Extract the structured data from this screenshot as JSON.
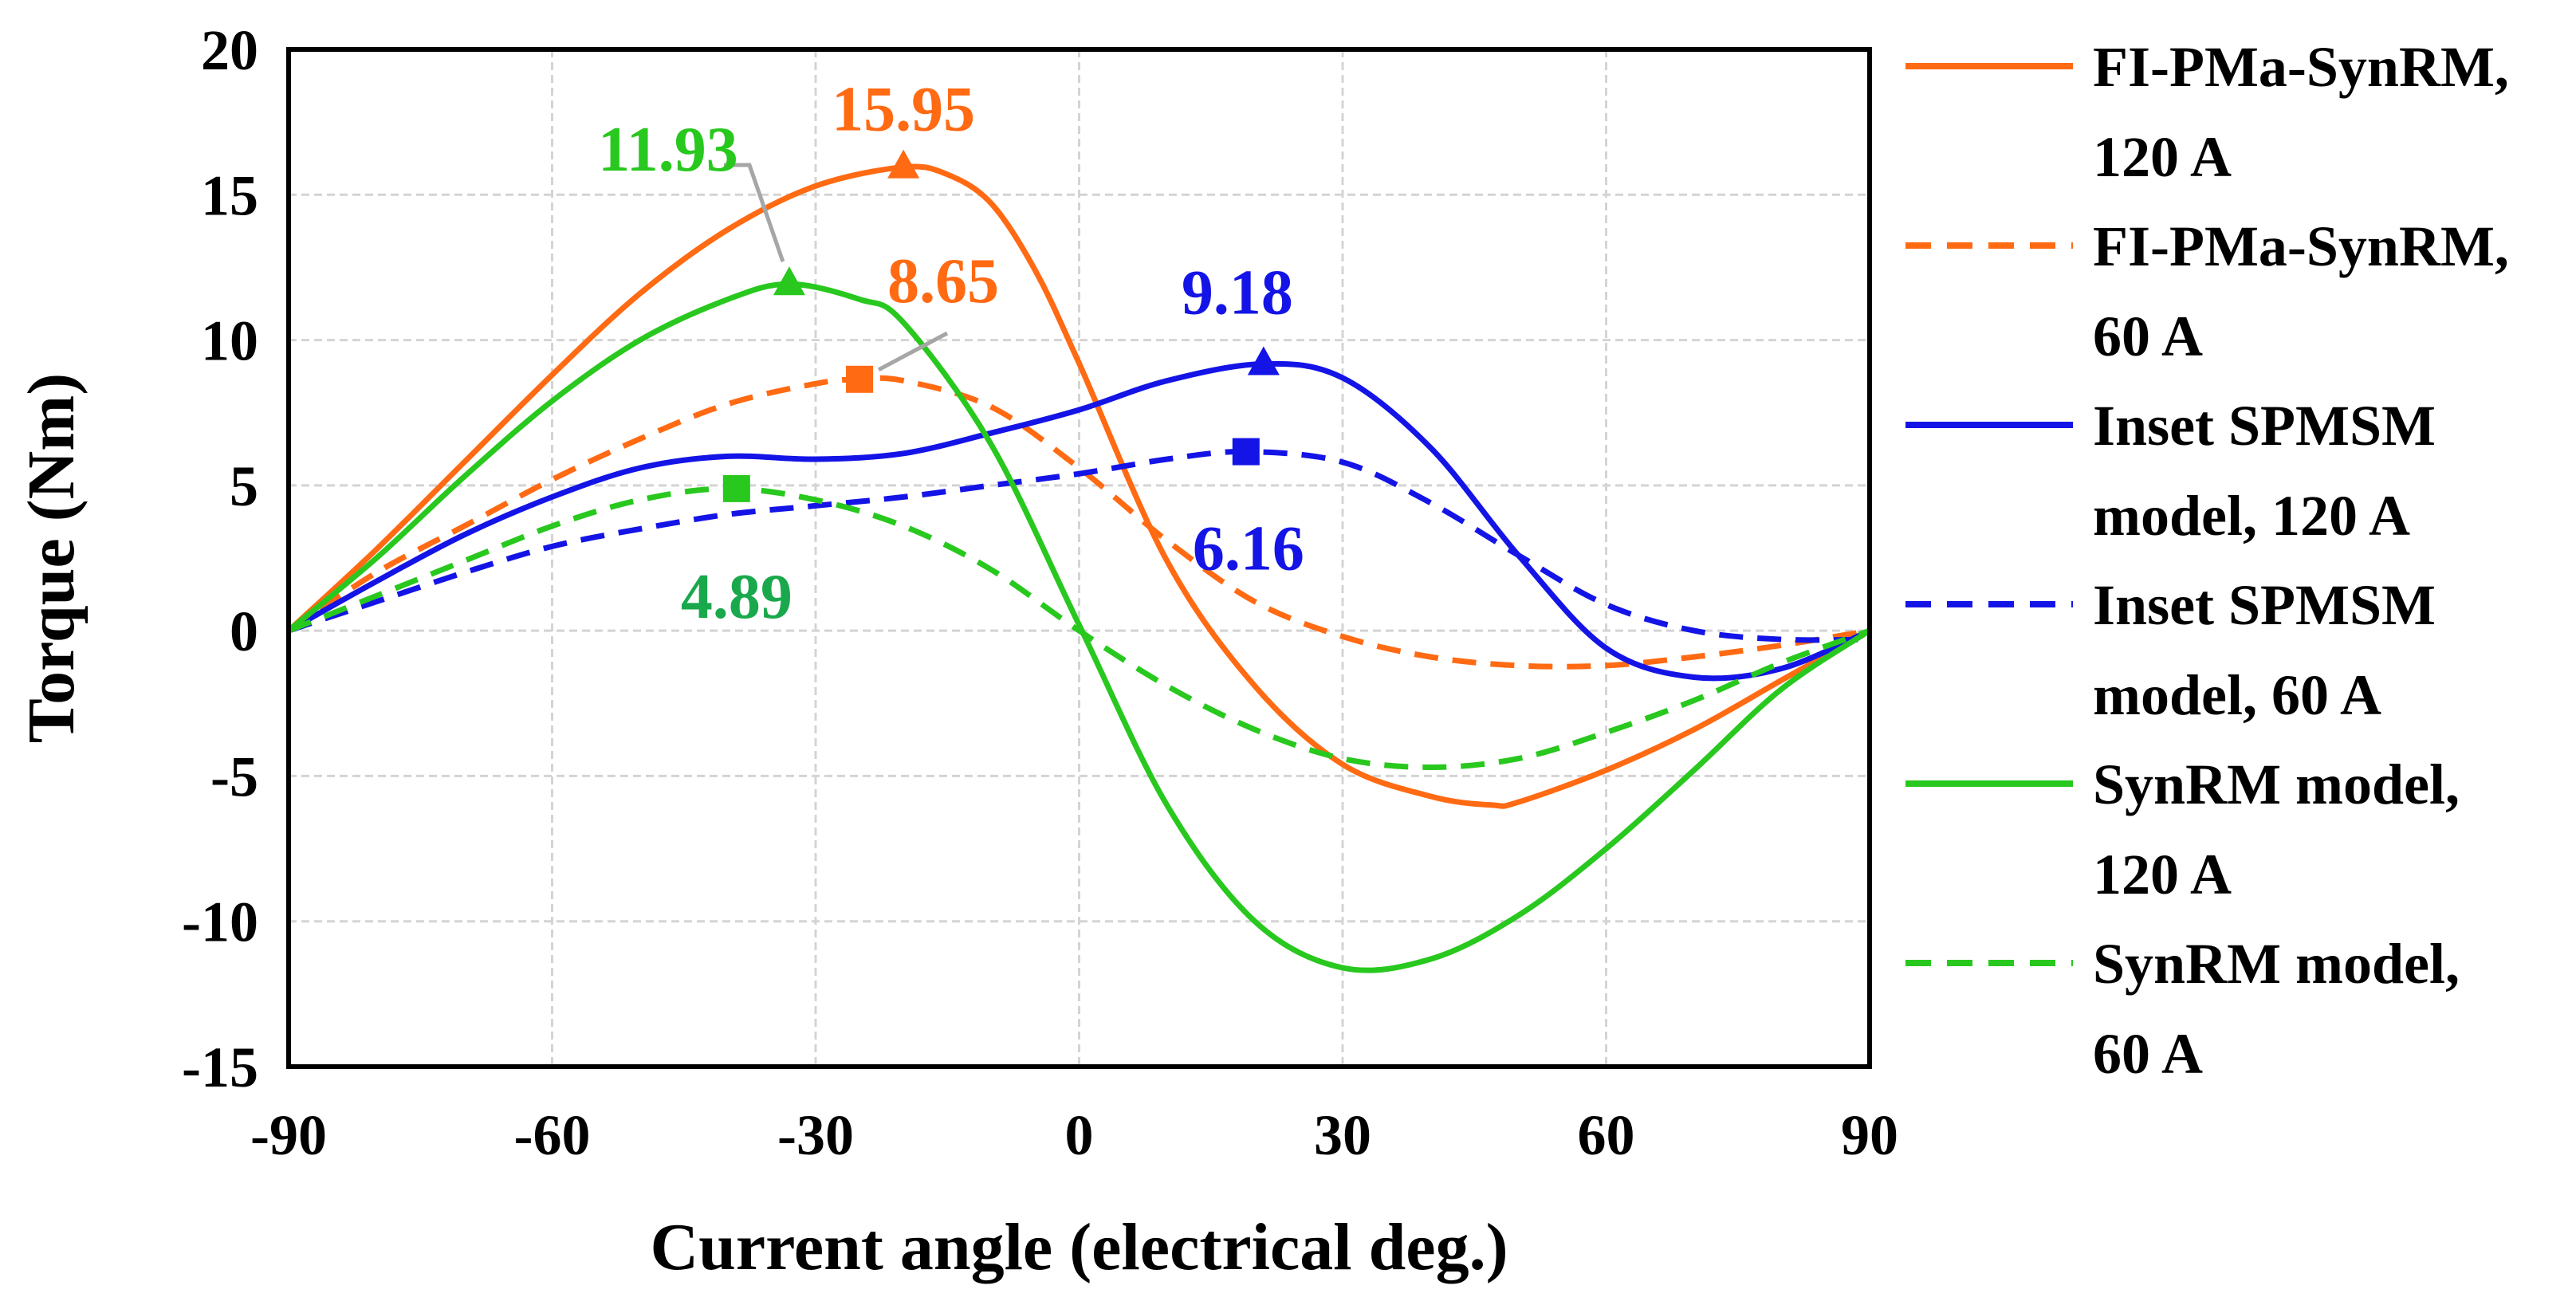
{
  "chart_data": {
    "type": "line",
    "xlabel": "Current angle (electrical deg.)",
    "ylabel": "Torque (Nm)",
    "xlim": [
      -90,
      90
    ],
    "ylim": [
      -15,
      20
    ],
    "xticks": [
      -90,
      -60,
      -30,
      0,
      30,
      60,
      90
    ],
    "yticks": [
      -15,
      -10,
      -5,
      0,
      5,
      10,
      15,
      20
    ],
    "x_tick_labels": [
      "-90",
      "-60",
      "-30",
      "0",
      "30",
      "60",
      "90"
    ],
    "y_tick_labels": [
      "-15",
      "-10",
      "-5",
      "0",
      "5",
      "10",
      "15",
      "20"
    ],
    "grid": true,
    "legend_position": "right",
    "series": [
      {
        "name": "FI-PMa-SynRM, 120 A",
        "legend_lines": [
          "FI-PMa-SynRM,",
          "120 A"
        ],
        "color": "#ff6a13",
        "dash": "solid",
        "x": [
          -90,
          -80,
          -70,
          -60,
          -50,
          -40,
          -30,
          -20,
          -15,
          -10,
          -5,
          0,
          10,
          20,
          30,
          40,
          47,
          50,
          60,
          70,
          80,
          90
        ],
        "y": [
          0,
          2.8,
          5.8,
          8.8,
          11.6,
          13.8,
          15.3,
          15.95,
          15.7,
          14.7,
          12.4,
          9.2,
          2.4,
          -1.9,
          -4.6,
          -5.7,
          -6.0,
          -5.9,
          -4.8,
          -3.4,
          -1.7,
          0
        ]
      },
      {
        "name": "FI-PMa-SynRM, 60 A",
        "legend_lines": [
          "FI-PMa-SynRM,",
          "60 A"
        ],
        "color": "#ff6a13",
        "dash": "dashed",
        "x": [
          -90,
          -80,
          -70,
          -60,
          -50,
          -40,
          -30,
          -25,
          -20,
          -10,
          0,
          10,
          20,
          30,
          40,
          50,
          60,
          70,
          80,
          90
        ],
        "y": [
          0,
          2.0,
          3.6,
          5.2,
          6.6,
          7.8,
          8.5,
          8.65,
          8.6,
          7.7,
          5.6,
          3.1,
          1.0,
          -0.2,
          -0.9,
          -1.2,
          -1.2,
          -0.9,
          -0.5,
          0
        ]
      },
      {
        "name": "Inset SPMSM model, 120 A",
        "legend_lines": [
          "Inset SPMSM",
          "model, 120 A"
        ],
        "color": "#1414e6",
        "dash": "solid",
        "x": [
          -90,
          -80,
          -70,
          -60,
          -50,
          -40,
          -30,
          -20,
          -10,
          0,
          10,
          21,
          30,
          40,
          50,
          60,
          70,
          80,
          90
        ],
        "y": [
          0,
          1.7,
          3.3,
          4.6,
          5.6,
          6.0,
          5.9,
          6.1,
          6.8,
          7.6,
          8.6,
          9.18,
          8.7,
          6.3,
          2.6,
          -0.6,
          -1.6,
          -1.3,
          0
        ]
      },
      {
        "name": "Inset SPMSM model, 60 A",
        "legend_lines": [
          "Inset SPMSM",
          "model, 60 A"
        ],
        "color": "#1414e6",
        "dash": "dashed",
        "x": [
          -90,
          -80,
          -70,
          -60,
          -50,
          -40,
          -30,
          -20,
          -10,
          0,
          10,
          19,
          30,
          40,
          50,
          60,
          70,
          80,
          90
        ],
        "y": [
          0,
          1.0,
          2.0,
          2.9,
          3.5,
          4.0,
          4.3,
          4.6,
          5.0,
          5.4,
          5.9,
          6.16,
          5.8,
          4.4,
          2.6,
          0.9,
          0,
          -0.3,
          -0.3
        ]
      },
      {
        "name": "SynRM model, 120 A",
        "legend_lines": [
          "SynRM model,",
          "120 A"
        ],
        "color": "#28c81e",
        "dash": "solid",
        "x": [
          -90,
          -80,
          -70,
          -60,
          -50,
          -40,
          -33,
          -25,
          -20,
          -10,
          0,
          10,
          20,
          30,
          40,
          50,
          60,
          70,
          80,
          90
        ],
        "y": [
          0,
          2.5,
          5.3,
          7.9,
          10.0,
          11.4,
          11.93,
          11.4,
          10.6,
          6.4,
          0.2,
          -6.0,
          -10.0,
          -11.6,
          -11.3,
          -9.8,
          -7.5,
          -4.8,
          -2.0,
          0
        ]
      },
      {
        "name": "SynRM model, 60 A",
        "legend_lines": [
          "SynRM model,",
          "60 A"
        ],
        "color": "#28c81e",
        "dash": "dashed",
        "x": [
          -90,
          -80,
          -70,
          -60,
          -50,
          -40,
          -30,
          -20,
          -10,
          0,
          10,
          20,
          30,
          40,
          50,
          60,
          70,
          80,
          90
        ],
        "y": [
          0,
          1.2,
          2.4,
          3.6,
          4.5,
          4.89,
          4.5,
          3.6,
          2.1,
          0,
          -1.9,
          -3.4,
          -4.4,
          -4.7,
          -4.4,
          -3.5,
          -2.4,
          -1.1,
          0
        ]
      }
    ],
    "markers": [
      {
        "series": "FI-PMa-SynRM, 120 A",
        "shape": "triangle",
        "x": -20,
        "y": 15.95,
        "color": "#ff6a13"
      },
      {
        "series": "FI-PMa-SynRM, 60 A",
        "shape": "square",
        "x": -25,
        "y": 8.65,
        "color": "#ff6a13"
      },
      {
        "series": "Inset SPMSM model, 120 A",
        "shape": "triangle",
        "x": 21,
        "y": 9.18,
        "color": "#1414e6"
      },
      {
        "series": "Inset SPMSM model, 60 A",
        "shape": "square",
        "x": 19,
        "y": 6.16,
        "color": "#1414e6"
      },
      {
        "series": "SynRM model, 120 A",
        "shape": "triangle",
        "x": -33,
        "y": 11.93,
        "color": "#28c81e"
      },
      {
        "series": "SynRM model, 60 A",
        "shape": "square",
        "x": -39,
        "y": 4.89,
        "color": "#28c81e"
      }
    ],
    "annotations": [
      {
        "text": "15.95",
        "color": "#ff6a13"
      },
      {
        "text": "8.65",
        "color": "#ff6a13"
      },
      {
        "text": "9.18",
        "color": "#1414e6"
      },
      {
        "text": "6.16",
        "color": "#1414e6"
      },
      {
        "text": "11.93",
        "color": "#28c81e"
      },
      {
        "text": "4.89",
        "color": "#1aa84c"
      }
    ]
  }
}
